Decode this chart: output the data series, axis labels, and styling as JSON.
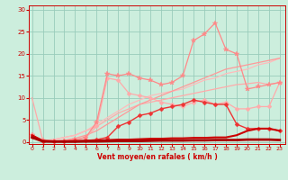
{
  "bg_color": "#cceedd",
  "grid_color": "#99ccbb",
  "x_label": "Vent moyen/en rafales ( km/h )",
  "x_ticks": [
    0,
    1,
    2,
    3,
    4,
    5,
    6,
    7,
    8,
    9,
    10,
    11,
    12,
    13,
    14,
    15,
    16,
    17,
    18,
    19,
    20,
    21,
    22,
    23
  ],
  "y_ticks": [
    0,
    5,
    10,
    15,
    20,
    25,
    30
  ],
  "ylim": [
    -0.5,
    31
  ],
  "xlim": [
    -0.3,
    23.5
  ],
  "lines": [
    {
      "x": [
        0,
        1,
        2,
        3,
        4,
        5,
        6,
        7,
        8,
        9,
        10,
        11,
        12,
        13,
        14,
        15,
        16,
        17,
        18,
        19,
        20,
        21,
        22,
        23
      ],
      "y": [
        10.0,
        0.3,
        0.5,
        1.0,
        1.5,
        2.5,
        3.5,
        5.0,
        6.5,
        7.5,
        8.5,
        9.0,
        9.5,
        10.0,
        10.5,
        11.0,
        11.5,
        12.0,
        12.5,
        13.0,
        13.2,
        13.5,
        13.0,
        13.5
      ],
      "color": "#ffaaaa",
      "lw": 0.9,
      "marker": null,
      "zorder": 2
    },
    {
      "x": [
        0,
        1,
        2,
        3,
        4,
        5,
        6,
        7,
        8,
        9,
        10,
        11,
        12,
        13,
        14,
        15,
        16,
        17,
        18,
        19,
        20,
        21,
        22,
        23
      ],
      "y": [
        1.5,
        0.2,
        0.5,
        1.0,
        1.5,
        2.5,
        4.0,
        5.5,
        7.0,
        8.5,
        9.5,
        10.5,
        11.0,
        11.5,
        12.0,
        13.0,
        14.0,
        14.5,
        15.5,
        16.0,
        16.5,
        17.5,
        18.0,
        19.0
      ],
      "color": "#ffbbbb",
      "lw": 0.9,
      "marker": null,
      "zorder": 2
    },
    {
      "x": [
        0,
        1,
        2,
        3,
        4,
        5,
        6,
        7,
        8,
        9,
        10,
        11,
        12,
        13,
        14,
        15,
        16,
        17,
        18,
        19,
        20,
        21,
        22,
        23
      ],
      "y": [
        1.2,
        0.1,
        0.2,
        0.4,
        0.8,
        1.5,
        2.5,
        4.0,
        5.5,
        7.0,
        8.5,
        9.5,
        10.5,
        11.5,
        12.5,
        13.5,
        14.5,
        15.5,
        16.5,
        17.0,
        17.5,
        18.0,
        18.5,
        19.0
      ],
      "color": "#ff9999",
      "lw": 0.9,
      "marker": null,
      "zorder": 2
    },
    {
      "x": [
        0,
        1,
        2,
        3,
        4,
        5,
        6,
        7,
        8,
        9,
        10,
        11,
        12,
        13,
        14,
        15,
        16,
        17,
        18,
        19,
        20,
        21,
        22,
        23
      ],
      "y": [
        1.5,
        0.3,
        0.2,
        0.3,
        0.5,
        1.0,
        3.5,
        14.5,
        14.0,
        11.0,
        10.5,
        10.0,
        9.0,
        8.5,
        8.0,
        9.0,
        9.5,
        8.5,
        9.0,
        7.5,
        7.5,
        8.0,
        8.0,
        13.5
      ],
      "color": "#ffaaaa",
      "lw": 0.9,
      "marker": "D",
      "ms": 2.5,
      "zorder": 3
    },
    {
      "x": [
        0,
        1,
        2,
        3,
        4,
        5,
        6,
        7,
        8,
        9,
        10,
        11,
        12,
        13,
        14,
        15,
        16,
        17,
        18,
        19,
        20,
        21,
        22,
        23
      ],
      "y": [
        1.5,
        0.4,
        0.2,
        0.2,
        0.5,
        1.0,
        4.5,
        15.5,
        15.0,
        15.5,
        14.5,
        14.0,
        13.0,
        13.5,
        15.0,
        23.0,
        24.5,
        27.0,
        21.0,
        20.0,
        12.0,
        12.5,
        13.0,
        13.5
      ],
      "color": "#ff8888",
      "lw": 0.9,
      "marker": "*",
      "ms": 4,
      "zorder": 3
    },
    {
      "x": [
        0,
        1,
        2,
        3,
        4,
        5,
        6,
        7,
        8,
        9,
        10,
        11,
        12,
        13,
        14,
        15,
        16,
        17,
        18,
        19,
        20,
        21,
        22,
        23
      ],
      "y": [
        1.2,
        0.2,
        0.1,
        0.2,
        0.3,
        0.3,
        0.5,
        1.0,
        3.5,
        4.5,
        6.0,
        6.5,
        7.5,
        8.0,
        8.5,
        9.5,
        9.0,
        8.5,
        8.5,
        4.0,
        3.0,
        3.0,
        3.0,
        2.5
      ],
      "color": "#ee3333",
      "lw": 1.0,
      "marker": "D",
      "ms": 2.5,
      "zorder": 4
    },
    {
      "x": [
        0,
        1,
        2,
        3,
        4,
        5,
        6,
        7,
        8,
        9,
        10,
        11,
        12,
        13,
        14,
        15,
        16,
        17,
        18,
        19,
        20,
        21,
        22,
        23
      ],
      "y": [
        1.5,
        0.2,
        0.1,
        0.1,
        0.1,
        0.2,
        0.3,
        0.4,
        0.5,
        0.5,
        0.6,
        0.7,
        0.7,
        0.8,
        0.8,
        0.9,
        0.9,
        1.0,
        1.0,
        1.5,
        2.5,
        3.0,
        3.0,
        2.5
      ],
      "color": "#cc0000",
      "lw": 1.5,
      "marker": null,
      "zorder": 5
    },
    {
      "x": [
        0,
        1,
        2,
        3,
        4,
        5,
        6,
        7,
        8,
        9,
        10,
        11,
        12,
        13,
        14,
        15,
        16,
        17,
        18,
        19,
        20,
        21,
        22,
        23
      ],
      "y": [
        1.0,
        0.1,
        0.05,
        0.05,
        0.05,
        0.1,
        0.1,
        0.15,
        0.2,
        0.2,
        0.2,
        0.25,
        0.3,
        0.3,
        0.3,
        0.35,
        0.35,
        0.4,
        0.4,
        0.4,
        0.5,
        0.5,
        0.5,
        0.4
      ],
      "color": "#aa0000",
      "lw": 2.0,
      "marker": null,
      "zorder": 5
    }
  ]
}
